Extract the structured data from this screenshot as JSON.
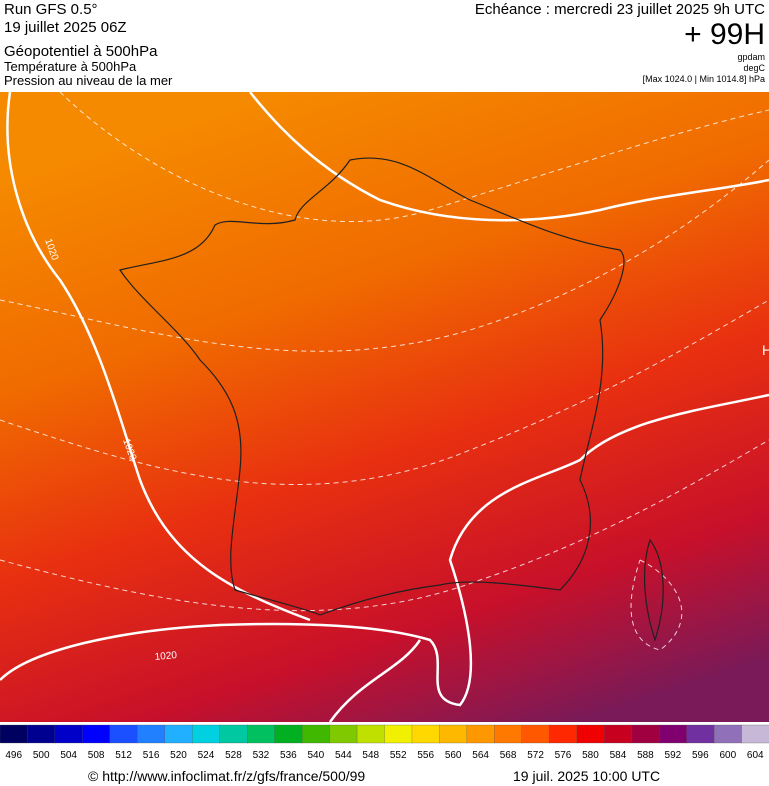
{
  "header": {
    "run": "Run GFS 0.5°",
    "date": "19 juillet 2025 06Z",
    "field1": "Géopotentiel à 500hPa",
    "field2": "Température à 500hPa",
    "field3": "Pression au niveau de la mer",
    "echeance": "Echéance : mercredi 23 juillet 2025 9h UTC",
    "lead": "+ 99H",
    "unit1": "gpdam",
    "unit2": "degC",
    "maxmin": "[Max 1024.0 | Min 1014.8] hPa"
  },
  "map": {
    "contour_labels": [
      "1020",
      "1020",
      "1020"
    ],
    "high": "H"
  },
  "colorbar": {
    "labels": [
      "496",
      "500",
      "504",
      "508",
      "512",
      "516",
      "520",
      "524",
      "528",
      "532",
      "536",
      "540",
      "544",
      "548",
      "552",
      "556",
      "560",
      "564",
      "568",
      "572",
      "576",
      "580",
      "584",
      "588",
      "592",
      "596",
      "600",
      "604"
    ],
    "colors": [
      "#000060",
      "#000090",
      "#0000c8",
      "#0000ff",
      "#1a50ff",
      "#2080ff",
      "#20b0ff",
      "#00d0e0",
      "#00c8a0",
      "#00c060",
      "#00b020",
      "#40b800",
      "#80c800",
      "#c0e000",
      "#f0f000",
      "#ffd800",
      "#ffb800",
      "#ff9800",
      "#ff7800",
      "#ff5800",
      "#ff2800",
      "#f00000",
      "#c80020",
      "#a00040",
      "#800070",
      "#7030a0",
      "#9070b8",
      "#c8b8d8"
    ]
  },
  "footer": {
    "url": "© http://www.infoclimat.fr/z/gfs/france/500/99",
    "time": "19 juil. 2025 10:00 UTC"
  }
}
